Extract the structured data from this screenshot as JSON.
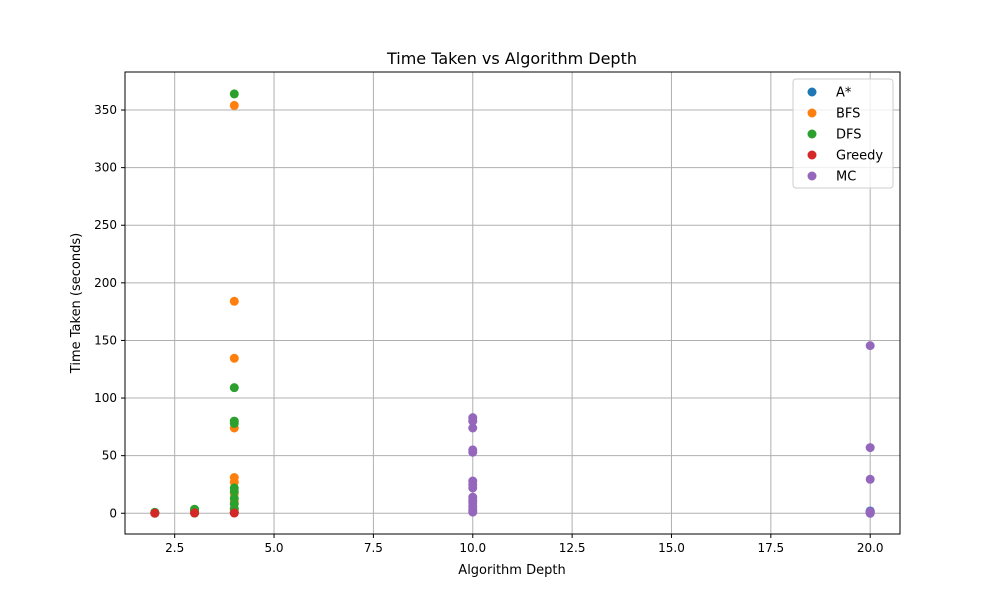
{
  "chart_data": {
    "type": "scatter",
    "title": "Time Taken vs Algorithm Depth",
    "xlabel": "Algorithm Depth",
    "ylabel": "Time Taken (seconds)",
    "xlim": [
      1.25,
      20.75
    ],
    "ylim": [
      -18,
      383
    ],
    "xticks": [
      2.5,
      5.0,
      7.5,
      10.0,
      12.5,
      15.0,
      17.5,
      20.0
    ],
    "xtick_labels": [
      "2.5",
      "5.0",
      "7.5",
      "10.0",
      "12.5",
      "15.0",
      "17.5",
      "20.0"
    ],
    "yticks": [
      0,
      50,
      100,
      150,
      200,
      250,
      300,
      350
    ],
    "ytick_labels": [
      "0",
      "50",
      "100",
      "150",
      "200",
      "250",
      "300",
      "350"
    ],
    "grid": true,
    "legend_position": "top-right",
    "series": [
      {
        "name": "A*",
        "color": "#1f77b4",
        "points": [
          [
            2,
            0.1
          ],
          [
            2,
            0.3
          ],
          [
            3,
            0.2
          ],
          [
            3,
            0.6
          ],
          [
            4,
            0.5
          ],
          [
            20,
            0.5
          ],
          [
            20,
            1.2
          ],
          [
            20,
            2.0
          ]
        ]
      },
      {
        "name": "BFS",
        "color": "#ff7f0e",
        "points": [
          [
            2,
            0.1
          ],
          [
            3,
            0.4
          ],
          [
            3,
            1.2
          ],
          [
            4,
            354
          ],
          [
            4,
            184
          ],
          [
            4,
            134.5
          ],
          [
            4,
            74
          ],
          [
            4,
            31
          ],
          [
            4,
            27
          ],
          [
            4,
            17
          ],
          [
            4,
            10
          ],
          [
            4,
            3
          ]
        ]
      },
      {
        "name": "DFS",
        "color": "#2ca02c",
        "points": [
          [
            2,
            0.1
          ],
          [
            2,
            0.4
          ],
          [
            2,
            0.8
          ],
          [
            3,
            0.2
          ],
          [
            3,
            1.0
          ],
          [
            3,
            2.0
          ],
          [
            3,
            3.5
          ],
          [
            4,
            364
          ],
          [
            4,
            109
          ],
          [
            4,
            80
          ],
          [
            4,
            78
          ],
          [
            4,
            22
          ],
          [
            4,
            19
          ],
          [
            4,
            13
          ],
          [
            4,
            8
          ],
          [
            4,
            4
          ],
          [
            4,
            0.5
          ]
        ]
      },
      {
        "name": "Greedy",
        "color": "#d62728",
        "points": [
          [
            2,
            0.1
          ],
          [
            3,
            0.3
          ],
          [
            4,
            0.2
          ],
          [
            20,
            0.3
          ]
        ]
      },
      {
        "name": "MC",
        "color": "#9467bd",
        "points": [
          [
            10,
            83
          ],
          [
            10,
            80
          ],
          [
            10,
            74
          ],
          [
            10,
            55
          ],
          [
            10,
            53
          ],
          [
            10,
            28
          ],
          [
            10,
            25
          ],
          [
            10,
            22
          ],
          [
            10,
            14
          ],
          [
            10,
            11
          ],
          [
            10,
            9
          ],
          [
            10,
            6
          ],
          [
            10,
            3
          ],
          [
            10,
            1
          ],
          [
            20,
            145.5
          ],
          [
            20,
            57
          ],
          [
            20,
            29.5
          ],
          [
            20,
            1.5
          ],
          [
            20,
            0.5
          ],
          [
            20,
            0
          ]
        ]
      }
    ]
  }
}
